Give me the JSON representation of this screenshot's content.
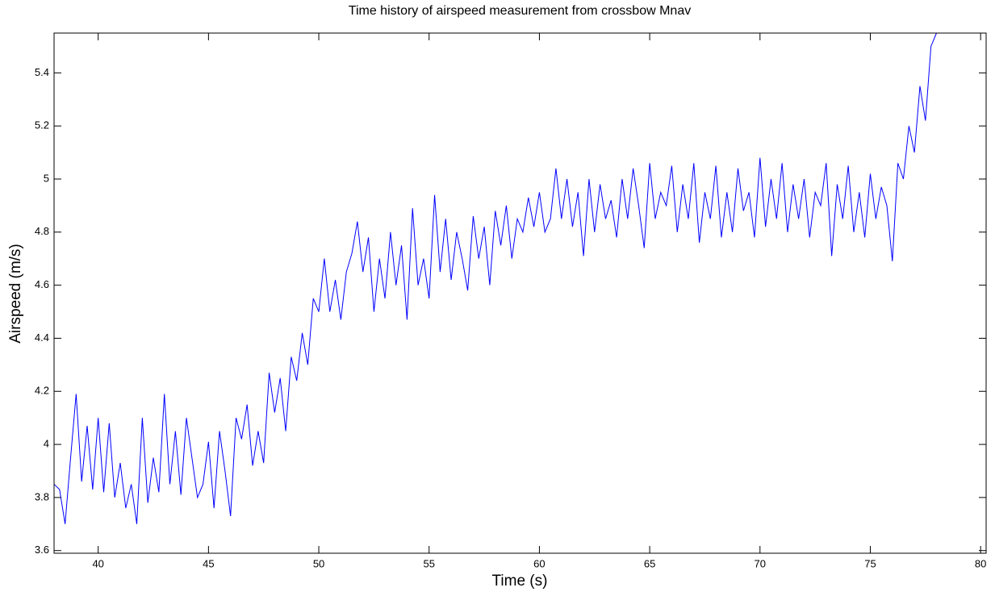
{
  "chart_data": {
    "type": "line",
    "title": "Time history of airspeed measurement from crossbow Mnav",
    "x_label": "Time (s)",
    "y_label": "Airspeed (m/s)",
    "color": "#0000ff",
    "xlim": [
      38,
      80.25
    ],
    "ylim": [
      3.59,
      5.55
    ],
    "xticks": [
      40,
      45,
      50,
      55,
      60,
      65,
      70,
      75,
      80
    ],
    "yticks": [
      3.6,
      3.8,
      4,
      4.2,
      4.4,
      4.6,
      4.8,
      5,
      5.2,
      5.4
    ],
    "x": [
      38,
      38.25,
      38.5,
      38.75,
      39,
      39.25,
      39.5,
      39.75,
      40,
      40.25,
      40.5,
      40.75,
      41,
      41.25,
      41.5,
      41.75,
      42,
      42.25,
      42.5,
      42.75,
      43,
      43.25,
      43.5,
      43.75,
      44,
      44.25,
      44.5,
      44.75,
      45,
      45.25,
      45.5,
      45.75,
      46,
      46.25,
      46.5,
      46.75,
      47,
      47.25,
      47.5,
      47.75,
      48,
      48.25,
      48.5,
      48.75,
      49,
      49.25,
      49.5,
      49.75,
      50,
      50.25,
      50.5,
      50.75,
      51,
      51.25,
      51.5,
      51.75,
      52,
      52.25,
      52.5,
      52.75,
      53,
      53.25,
      53.5,
      53.75,
      54,
      54.25,
      54.5,
      54.75,
      55,
      55.25,
      55.5,
      55.75,
      56,
      56.25,
      56.5,
      56.75,
      57,
      57.25,
      57.5,
      57.75,
      58,
      58.25,
      58.5,
      58.75,
      59,
      59.25,
      59.5,
      59.75,
      60,
      60.25,
      60.5,
      60.75,
      61,
      61.25,
      61.5,
      61.75,
      62,
      62.25,
      62.5,
      62.75,
      63,
      63.25,
      63.5,
      63.75,
      64,
      64.25,
      64.5,
      64.75,
      65,
      65.25,
      65.5,
      65.75,
      66,
      66.25,
      66.5,
      66.75,
      67,
      67.25,
      67.5,
      67.75,
      68,
      68.25,
      68.5,
      68.75,
      69,
      69.25,
      69.5,
      69.75,
      70,
      70.25,
      70.5,
      70.75,
      71,
      71.25,
      71.5,
      71.75,
      72,
      72.25,
      72.5,
      72.75,
      73,
      73.25,
      73.5,
      73.75,
      74,
      74.25,
      74.5,
      74.75,
      75,
      75.25,
      75.5,
      75.75,
      76,
      76.25,
      76.5,
      76.75,
      77,
      77.25,
      77.5,
      77.75,
      78
    ],
    "values": [
      3.85,
      3.83,
      3.7,
      3.95,
      4.19,
      3.86,
      4.07,
      3.83,
      4.1,
      3.82,
      4.08,
      3.8,
      3.93,
      3.76,
      3.85,
      3.7,
      4.1,
      3.78,
      3.95,
      3.82,
      4.19,
      3.85,
      4.05,
      3.81,
      4.1,
      3.95,
      3.8,
      3.85,
      4.01,
      3.76,
      4.05,
      3.9,
      3.73,
      4.1,
      4.02,
      4.15,
      3.92,
      4.05,
      3.93,
      4.27,
      4.12,
      4.25,
      4.05,
      4.33,
      4.24,
      4.42,
      4.3,
      4.55,
      4.5,
      4.7,
      4.5,
      4.62,
      4.47,
      4.65,
      4.72,
      4.84,
      4.65,
      4.78,
      4.5,
      4.7,
      4.55,
      4.8,
      4.6,
      4.75,
      4.47,
      4.89,
      4.6,
      4.7,
      4.55,
      4.94,
      4.65,
      4.85,
      4.62,
      4.8,
      4.7,
      4.58,
      4.86,
      4.7,
      4.82,
      4.6,
      4.88,
      4.75,
      4.9,
      4.7,
      4.85,
      4.8,
      4.93,
      4.82,
      4.95,
      4.8,
      4.85,
      5.04,
      4.85,
      5,
      4.82,
      4.95,
      4.71,
      5,
      4.8,
      4.98,
      4.85,
      4.92,
      4.78,
      5,
      4.85,
      5.04,
      4.9,
      4.74,
      5.06,
      4.85,
      4.95,
      4.9,
      5.05,
      4.8,
      4.98,
      4.85,
      5.06,
      4.76,
      4.95,
      4.85,
      5.05,
      4.78,
      4.95,
      4.8,
      5.04,
      4.88,
      4.95,
      4.78,
      5.08,
      4.82,
      5,
      4.85,
      5.06,
      4.8,
      4.98,
      4.85,
      5,
      4.78,
      4.95,
      4.9,
      5.06,
      4.71,
      4.98,
      4.85,
      5.05,
      4.8,
      4.95,
      4.78,
      5.02,
      4.85,
      4.97,
      4.9,
      4.69,
      5.06,
      5,
      5.2,
      5.1,
      5.35,
      5.22,
      5.5,
      5.55
    ]
  }
}
